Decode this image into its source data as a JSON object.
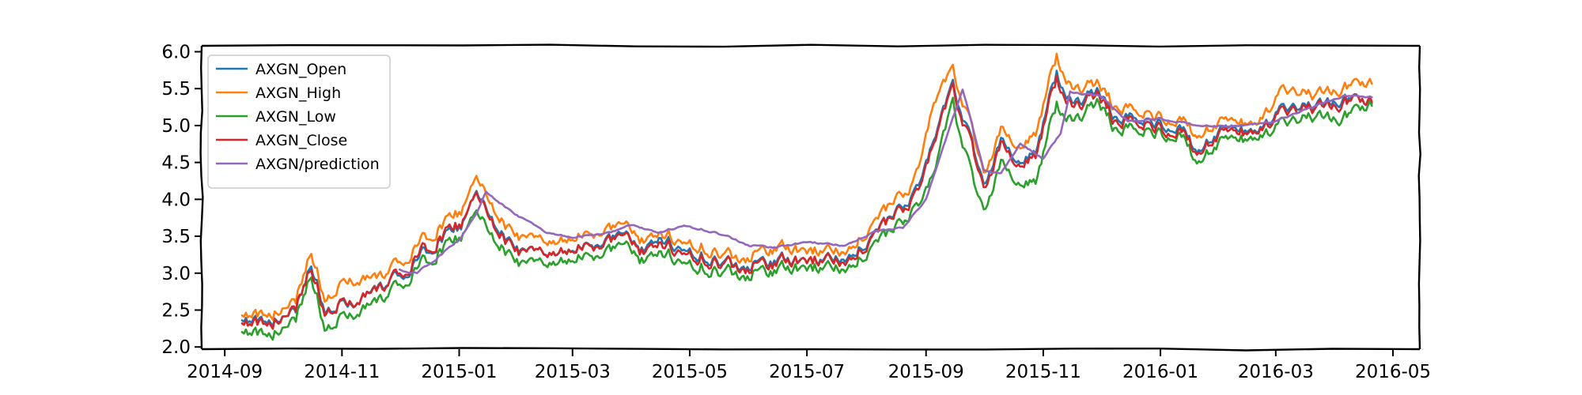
{
  "chart_data": {
    "type": "line",
    "title": "",
    "xlabel": "",
    "ylabel": "",
    "x_start": "2014-09-10",
    "x_end": "2016-04-20",
    "xlim": [
      "2014-08-20",
      "2016-05-15"
    ],
    "ylim": [
      1.97,
      6.08
    ],
    "xticks": [
      "2014-09",
      "2014-11",
      "2015-01",
      "2015-03",
      "2015-05",
      "2015-07",
      "2015-09",
      "2015-11",
      "2016-01",
      "2016-03",
      "2016-05"
    ],
    "yticks": [
      "2.0",
      "2.5",
      "3.0",
      "3.5",
      "4.0",
      "4.5",
      "5.0",
      "5.5",
      "6.0"
    ],
    "grid": false,
    "legend": "top-left",
    "style": "xkcd",
    "series": [
      {
        "name": "AXGN_Open",
        "color": "#1f77b4",
        "points": [
          [
            "2014-09-10",
            2.43
          ],
          [
            "2014-09-25",
            2.33
          ],
          [
            "2014-10-08",
            2.52
          ],
          [
            "2014-10-16",
            3.1
          ],
          [
            "2014-10-24",
            2.45
          ],
          [
            "2014-11-05",
            2.62
          ],
          [
            "2014-11-20",
            2.78
          ],
          [
            "2014-12-05",
            3.05
          ],
          [
            "2014-12-20",
            3.42
          ],
          [
            "2015-01-02",
            3.65
          ],
          [
            "2015-01-10",
            4.05
          ],
          [
            "2015-01-25",
            3.48
          ],
          [
            "2015-02-05",
            3.22
          ],
          [
            "2015-02-20",
            3.25
          ],
          [
            "2015-03-15",
            3.4
          ],
          [
            "2015-03-25",
            3.55
          ],
          [
            "2015-04-05",
            3.32
          ],
          [
            "2015-04-15",
            3.48
          ],
          [
            "2015-05-05",
            3.28
          ],
          [
            "2015-05-25",
            3.1
          ],
          [
            "2015-06-15",
            3.18
          ],
          [
            "2015-07-01",
            3.15
          ],
          [
            "2015-07-20",
            3.25
          ],
          [
            "2015-08-05",
            3.45
          ],
          [
            "2015-08-15",
            3.8
          ],
          [
            "2015-08-25",
            4.05
          ],
          [
            "2015-09-05",
            4.75
          ],
          [
            "2015-09-15",
            5.55
          ],
          [
            "2015-09-25",
            4.75
          ],
          [
            "2015-10-01",
            4.2
          ],
          [
            "2015-10-10",
            4.8
          ],
          [
            "2015-10-20",
            4.45
          ],
          [
            "2015-10-28",
            4.65
          ],
          [
            "2015-11-08",
            5.72
          ],
          [
            "2015-11-15",
            5.3
          ],
          [
            "2015-11-30",
            5.45
          ],
          [
            "2015-12-10",
            5.05
          ],
          [
            "2015-12-20",
            5.1
          ],
          [
            "2016-01-10",
            5.0
          ],
          [
            "2016-01-20",
            4.65
          ],
          [
            "2016-02-05",
            4.95
          ],
          [
            "2016-02-20",
            4.9
          ],
          [
            "2016-03-05",
            5.2
          ],
          [
            "2016-03-20",
            5.25
          ],
          [
            "2016-04-05",
            5.35
          ],
          [
            "2016-04-20",
            5.28
          ]
        ]
      },
      {
        "name": "AXGN_High",
        "color": "#ff7f0e",
        "points": [
          [
            "2014-09-10",
            2.5
          ],
          [
            "2014-09-25",
            2.42
          ],
          [
            "2014-10-08",
            2.65
          ],
          [
            "2014-10-16",
            3.27
          ],
          [
            "2014-10-24",
            2.6
          ],
          [
            "2014-11-05",
            2.95
          ],
          [
            "2014-11-20",
            2.92
          ],
          [
            "2014-12-05",
            3.25
          ],
          [
            "2014-12-20",
            3.6
          ],
          [
            "2015-01-02",
            3.85
          ],
          [
            "2015-01-10",
            4.25
          ],
          [
            "2015-01-25",
            3.65
          ],
          [
            "2015-02-05",
            3.4
          ],
          [
            "2015-02-20",
            3.4
          ],
          [
            "2015-03-15",
            3.55
          ],
          [
            "2015-03-25",
            3.68
          ],
          [
            "2015-04-05",
            3.45
          ],
          [
            "2015-04-15",
            3.55
          ],
          [
            "2015-05-05",
            3.4
          ],
          [
            "2015-05-25",
            3.2
          ],
          [
            "2015-06-15",
            3.35
          ],
          [
            "2015-07-01",
            3.28
          ],
          [
            "2015-07-20",
            3.35
          ],
          [
            "2015-08-05",
            3.6
          ],
          [
            "2015-08-15",
            3.98
          ],
          [
            "2015-08-25",
            4.2
          ],
          [
            "2015-09-05",
            5.25
          ],
          [
            "2015-09-15",
            5.75
          ],
          [
            "2015-09-25",
            4.95
          ],
          [
            "2015-10-01",
            4.35
          ],
          [
            "2015-10-10",
            4.95
          ],
          [
            "2015-10-20",
            4.65
          ],
          [
            "2015-10-28",
            4.9
          ],
          [
            "2015-11-08",
            5.95
          ],
          [
            "2015-11-15",
            5.5
          ],
          [
            "2015-11-30",
            5.55
          ],
          [
            "2015-12-10",
            5.2
          ],
          [
            "2015-12-20",
            5.2
          ],
          [
            "2016-01-10",
            5.1
          ],
          [
            "2016-01-20",
            4.85
          ],
          [
            "2016-02-05",
            5.05
          ],
          [
            "2016-02-20",
            5.0
          ],
          [
            "2016-03-05",
            5.45
          ],
          [
            "2016-03-20",
            5.4
          ],
          [
            "2016-04-05",
            5.5
          ],
          [
            "2016-04-20",
            5.55
          ]
        ]
      },
      {
        "name": "AXGN_Low",
        "color": "#2ca02c",
        "points": [
          [
            "2014-09-10",
            2.28
          ],
          [
            "2014-09-25",
            2.15
          ],
          [
            "2014-10-08",
            2.4
          ],
          [
            "2014-10-16",
            2.95
          ],
          [
            "2014-10-24",
            2.2
          ],
          [
            "2014-11-05",
            2.48
          ],
          [
            "2014-11-20",
            2.6
          ],
          [
            "2014-12-05",
            2.95
          ],
          [
            "2014-12-20",
            3.28
          ],
          [
            "2015-01-02",
            3.5
          ],
          [
            "2015-01-10",
            3.78
          ],
          [
            "2015-01-25",
            3.3
          ],
          [
            "2015-02-05",
            3.05
          ],
          [
            "2015-02-20",
            3.12
          ],
          [
            "2015-03-15",
            3.25
          ],
          [
            "2015-03-25",
            3.4
          ],
          [
            "2015-04-05",
            3.18
          ],
          [
            "2015-04-15",
            3.3
          ],
          [
            "2015-05-05",
            3.12
          ],
          [
            "2015-05-25",
            2.98
          ],
          [
            "2015-06-15",
            3.05
          ],
          [
            "2015-07-01",
            3.05
          ],
          [
            "2015-07-20",
            3.12
          ],
          [
            "2015-08-05",
            3.3
          ],
          [
            "2015-08-15",
            3.6
          ],
          [
            "2015-08-25",
            3.85
          ],
          [
            "2015-09-05",
            4.3
          ],
          [
            "2015-09-15",
            5.3
          ],
          [
            "2015-09-25",
            4.3
          ],
          [
            "2015-10-01",
            3.85
          ],
          [
            "2015-10-10",
            4.5
          ],
          [
            "2015-10-20",
            4.15
          ],
          [
            "2015-10-28",
            4.25
          ],
          [
            "2015-11-08",
            5.3
          ],
          [
            "2015-11-15",
            5.05
          ],
          [
            "2015-11-30",
            5.3
          ],
          [
            "2015-12-10",
            4.9
          ],
          [
            "2015-12-20",
            4.95
          ],
          [
            "2016-01-10",
            4.9
          ],
          [
            "2016-01-20",
            4.5
          ],
          [
            "2016-02-05",
            4.8
          ],
          [
            "2016-02-20",
            4.8
          ],
          [
            "2016-03-05",
            5.0
          ],
          [
            "2016-03-20",
            5.1
          ],
          [
            "2016-04-05",
            5.1
          ],
          [
            "2016-04-20",
            5.25
          ]
        ]
      },
      {
        "name": "AXGN_Close",
        "color": "#d62728",
        "points": [
          [
            "2014-09-10",
            2.4
          ],
          [
            "2014-09-25",
            2.3
          ],
          [
            "2014-10-08",
            2.55
          ],
          [
            "2014-10-16",
            3.05
          ],
          [
            "2014-10-24",
            2.42
          ],
          [
            "2014-11-05",
            2.65
          ],
          [
            "2014-11-20",
            2.75
          ],
          [
            "2014-12-05",
            3.1
          ],
          [
            "2014-12-20",
            3.45
          ],
          [
            "2015-01-02",
            3.68
          ],
          [
            "2015-01-10",
            4.02
          ],
          [
            "2015-01-25",
            3.45
          ],
          [
            "2015-02-05",
            3.2
          ],
          [
            "2015-02-20",
            3.25
          ],
          [
            "2015-03-15",
            3.38
          ],
          [
            "2015-03-25",
            3.52
          ],
          [
            "2015-04-05",
            3.3
          ],
          [
            "2015-04-15",
            3.42
          ],
          [
            "2015-05-05",
            3.25
          ],
          [
            "2015-05-25",
            3.08
          ],
          [
            "2015-06-15",
            3.15
          ],
          [
            "2015-07-01",
            3.15
          ],
          [
            "2015-07-20",
            3.22
          ],
          [
            "2015-08-05",
            3.42
          ],
          [
            "2015-08-15",
            3.78
          ],
          [
            "2015-08-25",
            4.0
          ],
          [
            "2015-09-05",
            4.7
          ],
          [
            "2015-09-15",
            5.5
          ],
          [
            "2015-09-25",
            4.7
          ],
          [
            "2015-10-01",
            4.15
          ],
          [
            "2015-10-10",
            4.75
          ],
          [
            "2015-10-20",
            4.4
          ],
          [
            "2015-10-28",
            4.6
          ],
          [
            "2015-11-08",
            5.65
          ],
          [
            "2015-11-15",
            5.25
          ],
          [
            "2015-11-30",
            5.4
          ],
          [
            "2015-12-10",
            5.0
          ],
          [
            "2015-12-20",
            5.05
          ],
          [
            "2016-01-10",
            4.95
          ],
          [
            "2016-01-20",
            4.62
          ],
          [
            "2016-02-05",
            4.9
          ],
          [
            "2016-02-20",
            4.88
          ],
          [
            "2016-03-05",
            5.15
          ],
          [
            "2016-03-20",
            5.22
          ],
          [
            "2016-04-05",
            5.3
          ],
          [
            "2016-04-20",
            5.3
          ]
        ]
      },
      {
        "name": "AXGN/prediction",
        "color": "#9467bd",
        "points": [
          [
            "2014-12-01",
            3.05
          ],
          [
            "2014-12-10",
            3.0
          ],
          [
            "2014-12-20",
            3.2
          ],
          [
            "2015-01-01",
            3.45
          ],
          [
            "2015-01-10",
            3.8
          ],
          [
            "2015-01-15",
            4.1
          ],
          [
            "2015-01-30",
            3.8
          ],
          [
            "2015-02-15",
            3.55
          ],
          [
            "2015-03-01",
            3.48
          ],
          [
            "2015-03-20",
            3.55
          ],
          [
            "2015-04-01",
            3.65
          ],
          [
            "2015-04-15",
            3.55
          ],
          [
            "2015-04-28",
            3.65
          ],
          [
            "2015-05-15",
            3.55
          ],
          [
            "2015-06-01",
            3.38
          ],
          [
            "2015-06-15",
            3.35
          ],
          [
            "2015-07-01",
            3.42
          ],
          [
            "2015-07-20",
            3.38
          ],
          [
            "2015-08-05",
            3.55
          ],
          [
            "2015-08-20",
            3.62
          ],
          [
            "2015-09-01",
            4.0
          ],
          [
            "2015-09-10",
            4.7
          ],
          [
            "2015-09-20",
            5.5
          ],
          [
            "2015-10-01",
            4.4
          ],
          [
            "2015-10-10",
            4.35
          ],
          [
            "2015-10-20",
            4.75
          ],
          [
            "2015-11-01",
            4.55
          ],
          [
            "2015-11-10",
            4.9
          ],
          [
            "2015-11-15",
            5.45
          ],
          [
            "2015-12-01",
            5.4
          ],
          [
            "2015-12-15",
            5.05
          ],
          [
            "2016-01-01",
            5.1
          ],
          [
            "2016-01-20",
            5.0
          ],
          [
            "2016-02-05",
            4.98
          ],
          [
            "2016-03-01",
            5.05
          ],
          [
            "2016-03-15",
            5.2
          ],
          [
            "2016-04-05",
            5.4
          ],
          [
            "2016-04-20",
            5.38
          ]
        ]
      }
    ]
  }
}
